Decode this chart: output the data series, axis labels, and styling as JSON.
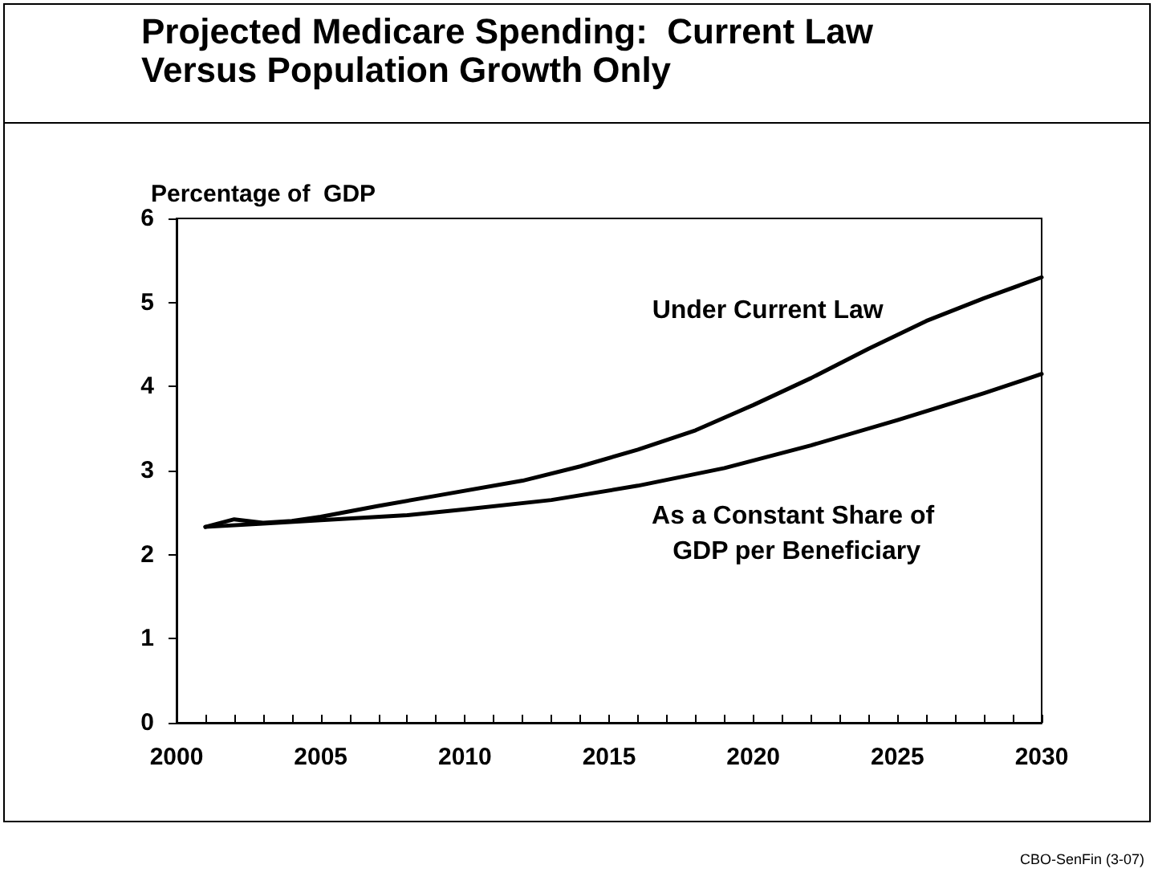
{
  "chart_data": {
    "type": "line",
    "title": "Projected Medicare Spending:  Current Law Versus Population Growth Only",
    "ylabel": "Percentage of  GDP",
    "annotations": [
      "CBO-SenFin (3-07)"
    ],
    "xlim": [
      2000,
      2030
    ],
    "xticks": [
      2000,
      2005,
      2010,
      2015,
      2020,
      2025,
      2030
    ],
    "ylim": [
      0,
      6
    ],
    "yticks": [
      0,
      1,
      2,
      3,
      4,
      5,
      6
    ],
    "grid": false,
    "legend": false,
    "marker": "none",
    "line_style": "solid",
    "series": [
      {
        "name": "Under Current Law",
        "color": "#000000",
        "x": [
          2001,
          2002,
          2003,
          2004,
          2005,
          2007,
          2009,
          2012,
          2014,
          2016,
          2018,
          2020,
          2022,
          2024,
          2026,
          2028,
          2030
        ],
        "values": [
          2.33,
          2.42,
          2.38,
          2.4,
          2.45,
          2.58,
          2.7,
          2.88,
          3.05,
          3.25,
          3.48,
          3.78,
          4.1,
          4.45,
          4.78,
          5.05,
          5.3
        ]
      },
      {
        "name": "As a Constant Share of GDP per Beneficiary",
        "color": "#000000",
        "x": [
          2001,
          2003,
          2005,
          2008,
          2010,
          2013,
          2016,
          2019,
          2022,
          2025,
          2028,
          2030
        ],
        "values": [
          2.33,
          2.37,
          2.41,
          2.47,
          2.54,
          2.65,
          2.82,
          3.03,
          3.3,
          3.6,
          3.92,
          4.15
        ]
      }
    ]
  }
}
